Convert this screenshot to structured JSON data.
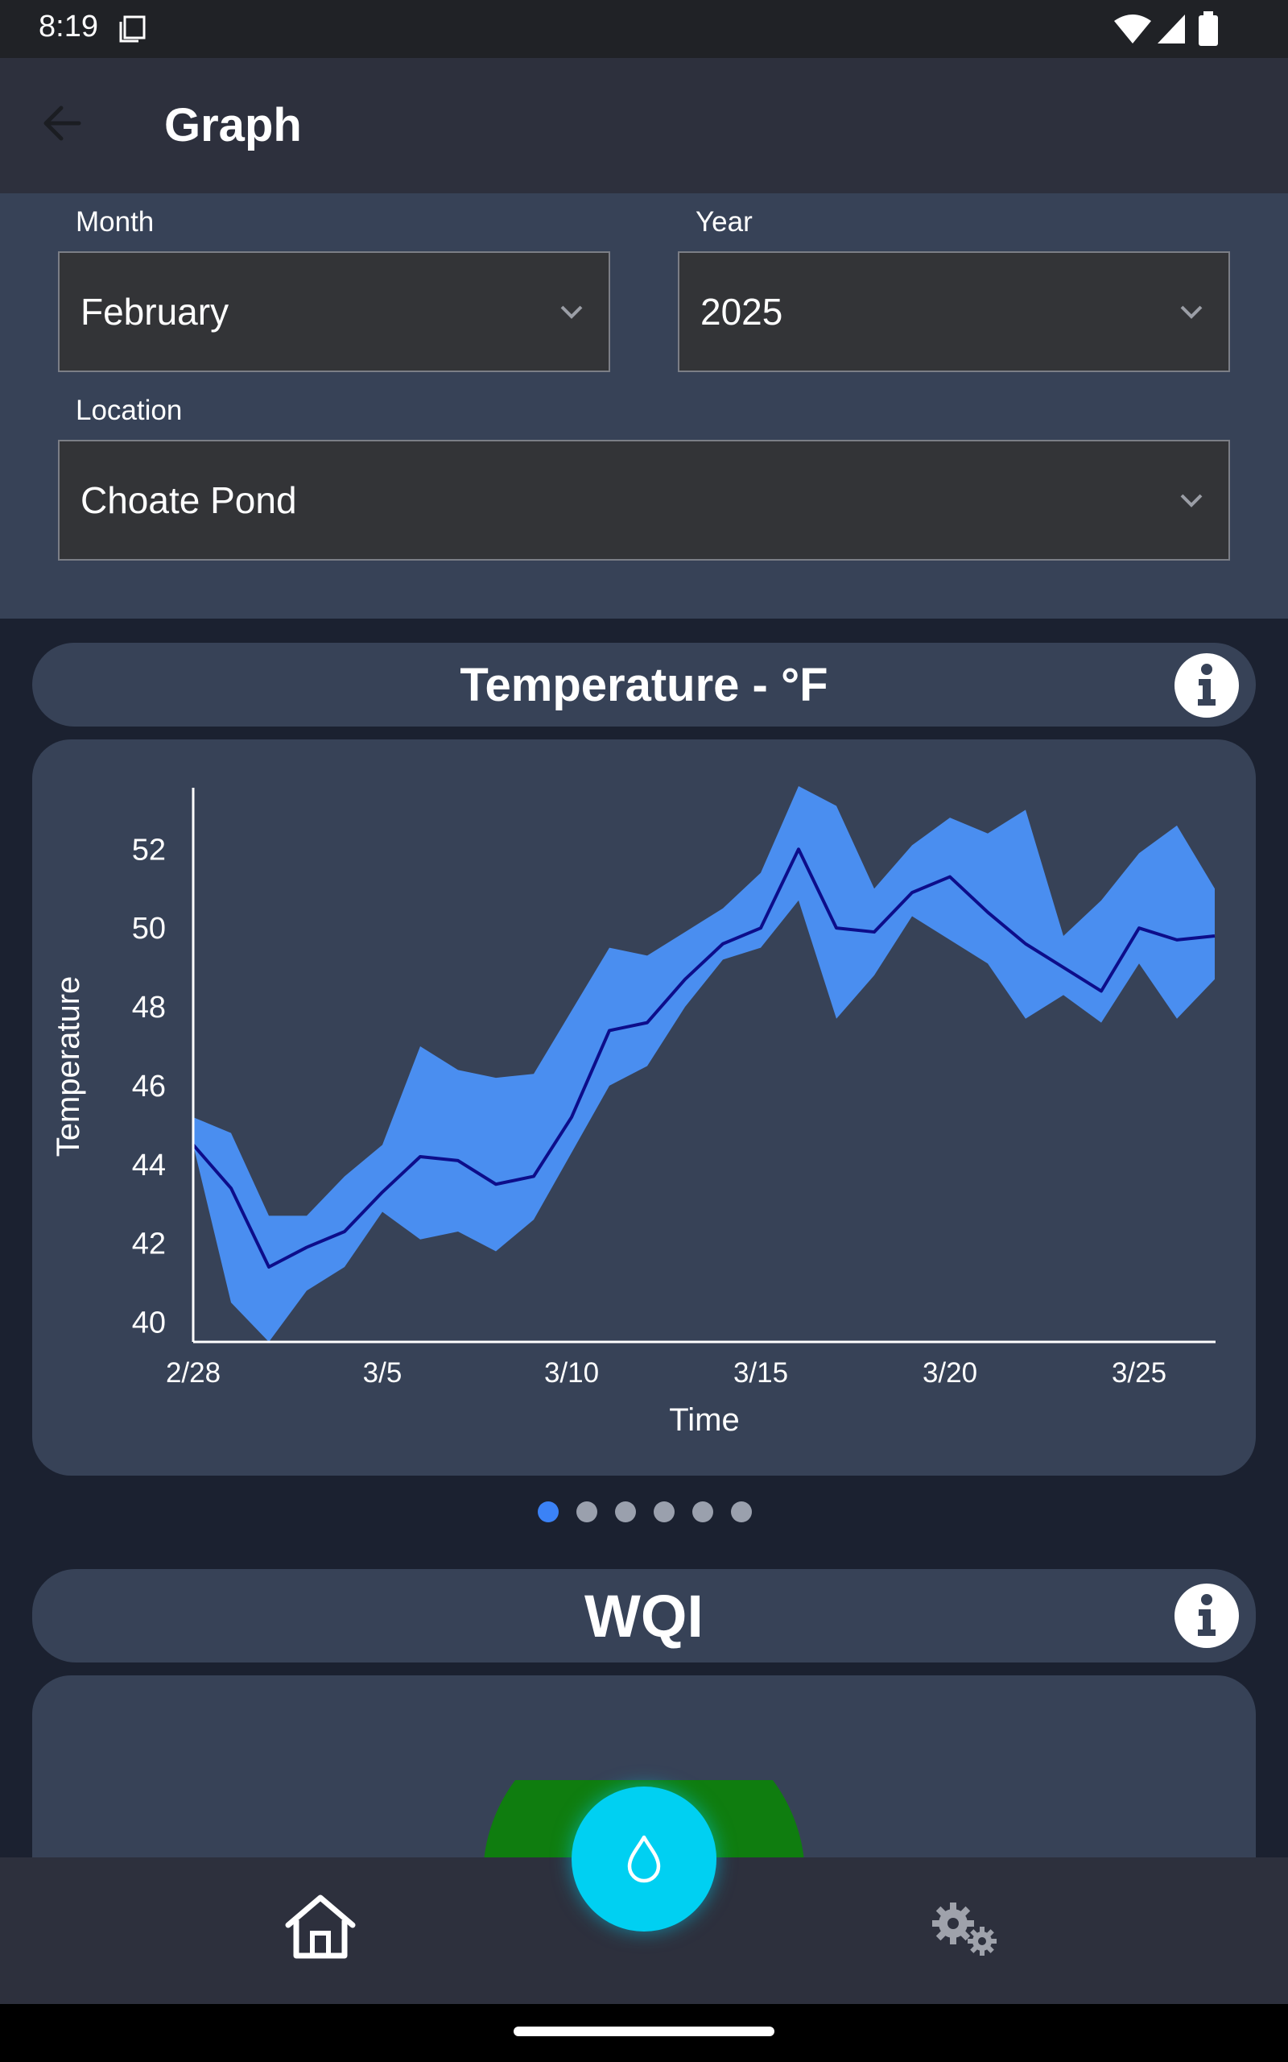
{
  "status_bar": {
    "time": "8:19"
  },
  "app_bar": {
    "title": "Graph"
  },
  "filters": {
    "month": {
      "label": "Month",
      "value": "February"
    },
    "year": {
      "label": "Year",
      "value": "2025"
    },
    "location": {
      "label": "Location",
      "value": "Choate Pond"
    }
  },
  "temperature_card": {
    "title": "Temperature - °F",
    "chart_data": {
      "type": "area",
      "title": "Temperature - °F",
      "xlabel": "Time",
      "ylabel": "Temperature",
      "x_ticks": [
        "2/28",
        "3/5",
        "3/10",
        "3/15",
        "3/20",
        "3/25"
      ],
      "y_ticks": [
        "40",
        "42",
        "44",
        "46",
        "48",
        "50",
        "52"
      ],
      "ylim": [
        39.5,
        53.6
      ],
      "x": [
        "2/28",
        "3/1",
        "3/2",
        "3/3",
        "3/4",
        "3/5",
        "3/6",
        "3/7",
        "3/8",
        "3/9",
        "3/10",
        "3/11",
        "3/12",
        "3/13",
        "3/14",
        "3/15",
        "3/16",
        "3/17",
        "3/18",
        "3/19",
        "3/20",
        "3/21",
        "3/22",
        "3/23",
        "3/24",
        "3/25",
        "3/26",
        "3/27"
      ],
      "series": [
        {
          "role": "mean",
          "values": [
            44.5,
            43.4,
            41.4,
            41.9,
            42.3,
            43.3,
            44.2,
            44.1,
            43.5,
            43.7,
            45.2,
            47.4,
            47.6,
            48.7,
            49.6,
            50.0,
            52.0,
            50.0,
            49.9,
            50.9,
            51.3,
            50.4,
            49.6,
            49.0,
            48.4,
            50.0,
            49.7,
            49.8
          ]
        },
        {
          "role": "upper",
          "values": [
            45.2,
            44.8,
            42.7,
            42.7,
            43.7,
            44.5,
            47.0,
            46.4,
            46.2,
            46.3,
            47.9,
            49.5,
            49.3,
            49.9,
            50.5,
            51.4,
            53.6,
            53.1,
            51.0,
            52.1,
            52.8,
            52.4,
            53.0,
            49.8,
            50.7,
            51.9,
            52.6,
            51.0
          ]
        },
        {
          "role": "lower",
          "values": [
            44.5,
            40.5,
            39.5,
            40.8,
            41.4,
            42.8,
            42.1,
            42.3,
            41.8,
            42.6,
            44.3,
            46.0,
            46.5,
            48.0,
            49.2,
            49.5,
            50.7,
            47.7,
            48.8,
            50.3,
            49.7,
            49.1,
            47.7,
            48.3,
            47.6,
            49.1,
            47.7,
            48.7
          ]
        }
      ],
      "colors": {
        "band": "#4a8ef0",
        "line": "#0d0d8a",
        "axis": "#ffffff"
      },
      "grid": false,
      "legend": "none"
    }
  },
  "pagination": {
    "count": 6,
    "active": 0
  },
  "wqi_card": {
    "title": "WQI",
    "gauge_color": "#0f7d0f"
  },
  "colors": {
    "fab": "#00d0f2",
    "accent": "#3b82f6"
  },
  "icons": {
    "back": "arrow-left-icon",
    "info": "info-icon",
    "home": "home-icon",
    "settings": "gears-icon",
    "fab": "water-drop-icon"
  }
}
